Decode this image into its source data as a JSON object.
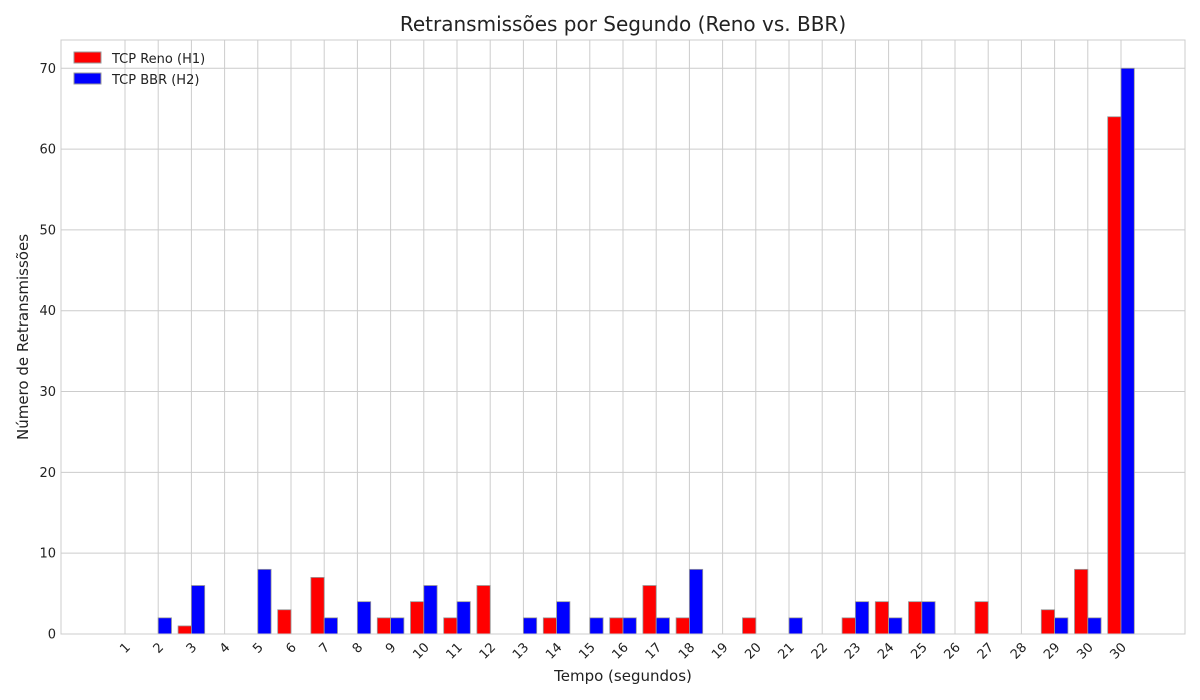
{
  "chart_data": {
    "type": "bar",
    "title": "Retransmissões por Segundo (Reno vs. BBR)",
    "xlabel": "Tempo (segundos)",
    "ylabel": "Número de Retransmissões",
    "ylim": [
      0,
      73.5
    ],
    "yticks": [
      0,
      10,
      20,
      30,
      40,
      50,
      60,
      70
    ],
    "grid": true,
    "legend_position": "top-left",
    "categories": [
      "1",
      "2",
      "3",
      "4",
      "5",
      "6",
      "7",
      "8",
      "9",
      "10",
      "11",
      "12",
      "13",
      "14",
      "15",
      "16",
      "17",
      "18",
      "19",
      "20",
      "21",
      "22",
      "23",
      "24",
      "25",
      "26",
      "27",
      "28",
      "29",
      "30",
      "30"
    ],
    "series": [
      {
        "name": "TCP Reno (H1)",
        "color": "#ff0000",
        "values": [
          0,
          0,
          1,
          0,
          0,
          3,
          7,
          0,
          2,
          4,
          2,
          6,
          0,
          2,
          0,
          2,
          6,
          2,
          0,
          2,
          0,
          0,
          2,
          4,
          4,
          0,
          4,
          0,
          3,
          8,
          64
        ]
      },
      {
        "name": "TCP BBR (H2)",
        "color": "#0000ff",
        "values": [
          0,
          2,
          6,
          0,
          8,
          0,
          2,
          4,
          2,
          6,
          4,
          0,
          2,
          4,
          2,
          2,
          2,
          8,
          0,
          0,
          2,
          0,
          4,
          2,
          4,
          0,
          0,
          0,
          2,
          2,
          70
        ]
      }
    ]
  }
}
